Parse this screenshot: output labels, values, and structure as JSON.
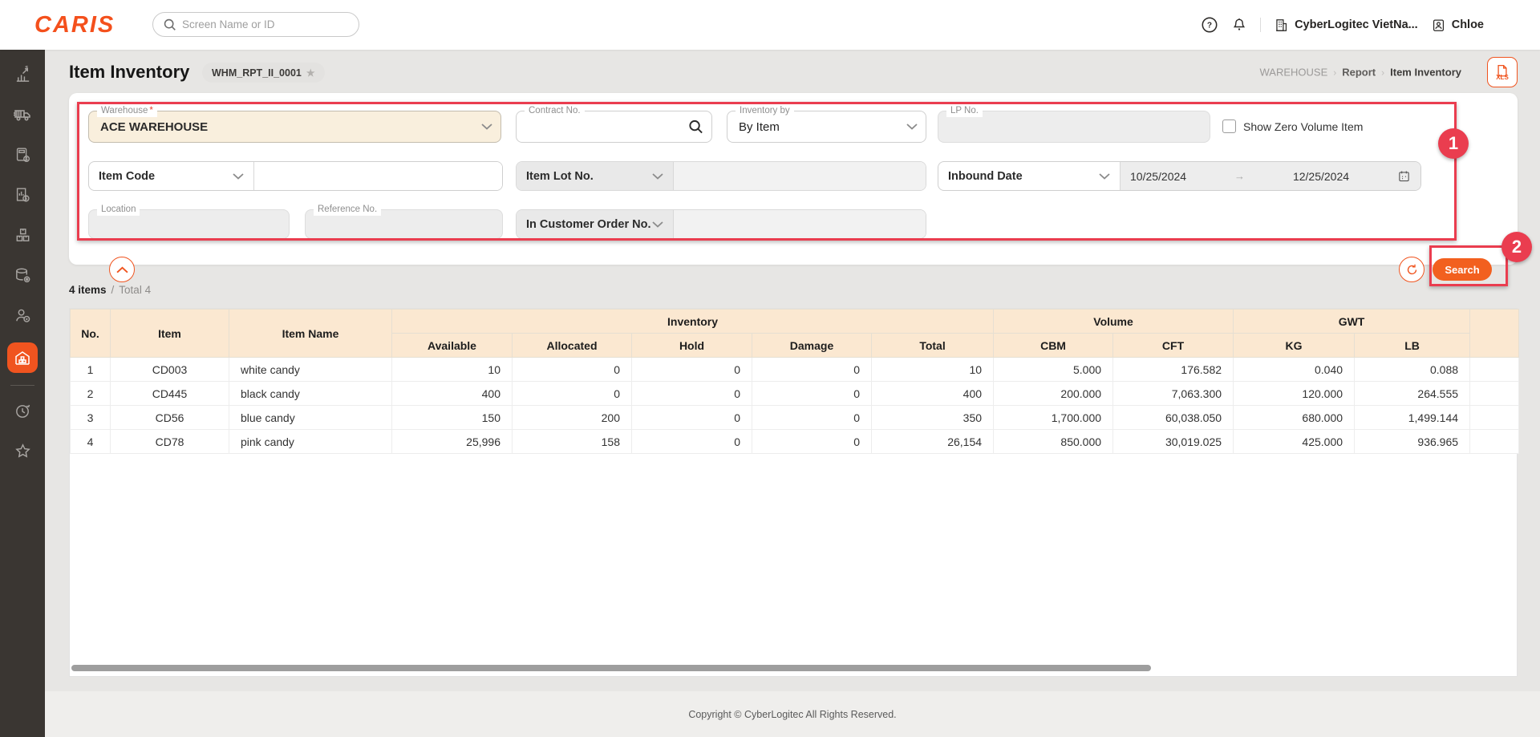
{
  "app": {
    "logo_text": "CARIS",
    "accent_color": "#F0541F",
    "annotation_color": "#EA3D4F"
  },
  "topbar": {
    "search_placeholder": "Screen Name or ID",
    "company": "CyberLogitec VietNa...",
    "user": "Chloe"
  },
  "sidebar": {
    "items": [
      {
        "icon": "sales-chart-icon",
        "active": false
      },
      {
        "icon": "truck-icon",
        "active": false
      },
      {
        "icon": "calculator-icon",
        "active": false
      },
      {
        "icon": "finance-report-icon",
        "active": false
      },
      {
        "icon": "packages-icon",
        "active": false
      },
      {
        "icon": "database-gear-icon",
        "active": false
      },
      {
        "icon": "user-badge-icon",
        "active": false
      },
      {
        "icon": "warehouse-icon",
        "active": true
      },
      {
        "icon": "history-clock-icon",
        "active": false
      },
      {
        "icon": "star-icon",
        "active": false
      }
    ]
  },
  "page": {
    "title": "Item Inventory",
    "screen_id": "WHM_RPT_II_0001",
    "star": "★",
    "breadcrumb": {
      "level1": "WAREHOUSE",
      "separator": "›",
      "level2": "Report",
      "level3": "Item Inventory"
    },
    "export_label": "XLS"
  },
  "filters": {
    "warehouse": {
      "label": "Warehouse",
      "required_mark": "*",
      "value": "ACE WAREHOUSE"
    },
    "contract_no": {
      "label": "Contract No.",
      "value": ""
    },
    "inventory_by": {
      "label": "Inventory by",
      "value": "By Item"
    },
    "lp_no": {
      "label": "LP No.",
      "value": ""
    },
    "show_zero": {
      "label": "Show Zero Volume Item",
      "checked": false
    },
    "item_code": {
      "label": "Item Code",
      "value": ""
    },
    "item_lot_no": {
      "label": "Item Lot No.",
      "value": ""
    },
    "inbound_date": {
      "label": "Inbound Date",
      "from": "10/25/2024",
      "to": "12/25/2024",
      "range_arrow": "→"
    },
    "location": {
      "label": "Location",
      "value": ""
    },
    "reference_no": {
      "label": "Reference No.",
      "value": ""
    },
    "in_customer_order_no": {
      "label": "In Customer Order No.",
      "value": ""
    }
  },
  "actions": {
    "search": "Search"
  },
  "annotations": {
    "step1": "1",
    "step2": "2"
  },
  "results": {
    "count": "4 items",
    "separator": "/",
    "total": "Total 4"
  },
  "table": {
    "group_headers": {
      "no": "No.",
      "item": "Item",
      "item_name": "Item Name",
      "inventory": "Inventory",
      "volume": "Volume",
      "gwt": "GWT"
    },
    "sub_headers": [
      "Available",
      "Allocated",
      "Hold",
      "Damage",
      "Total",
      "CBM",
      "CFT",
      "KG",
      "LB"
    ],
    "rows": [
      {
        "no": "1",
        "item": "CD003",
        "item_name": "white candy",
        "available": "10",
        "allocated": "0",
        "hold": "0",
        "damage": "0",
        "total": "10",
        "cbm": "5.000",
        "cft": "176.582",
        "kg": "0.040",
        "lb": "0.088"
      },
      {
        "no": "2",
        "item": "CD445",
        "item_name": "black candy",
        "available": "400",
        "allocated": "0",
        "hold": "0",
        "damage": "0",
        "total": "400",
        "cbm": "200.000",
        "cft": "7,063.300",
        "kg": "120.000",
        "lb": "264.555"
      },
      {
        "no": "3",
        "item": "CD56",
        "item_name": "blue candy",
        "available": "150",
        "allocated": "200",
        "hold": "0",
        "damage": "0",
        "total": "350",
        "cbm": "1,700.000",
        "cft": "60,038.050",
        "kg": "680.000",
        "lb": "1,499.144"
      },
      {
        "no": "4",
        "item": "CD78",
        "item_name": "pink candy",
        "available": "25,996",
        "allocated": "158",
        "hold": "0",
        "damage": "0",
        "total": "26,154",
        "cbm": "850.000",
        "cft": "30,019.025",
        "kg": "425.000",
        "lb": "936.965"
      }
    ]
  },
  "footer": {
    "copyright": "Copyright © CyberLogitec All Rights Reserved."
  }
}
